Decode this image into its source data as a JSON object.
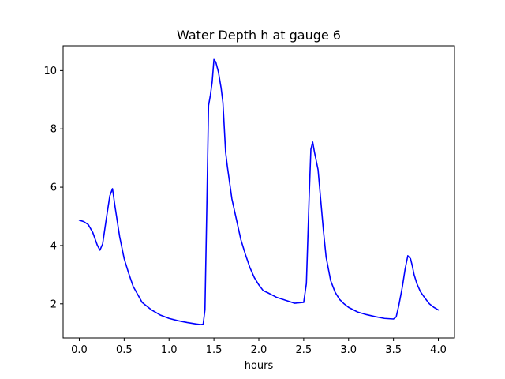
{
  "chart_data": {
    "type": "line",
    "title": "Water Depth h at gauge 6",
    "xlabel": "hours",
    "ylabel": "",
    "xlim": [
      -0.18,
      4.18
    ],
    "ylim": [
      0.83,
      10.85
    ],
    "xticks": [
      0.0,
      0.5,
      1.0,
      1.5,
      2.0,
      2.5,
      3.0,
      3.5,
      4.0
    ],
    "xtick_labels": [
      "0.0",
      "0.5",
      "1.0",
      "1.5",
      "2.0",
      "2.5",
      "3.0",
      "3.5",
      "4.0"
    ],
    "yticks": [
      2,
      4,
      6,
      8,
      10
    ],
    "ytick_labels": [
      "2",
      "4",
      "6",
      "8",
      "10"
    ],
    "grid": false,
    "series": [
      {
        "color": "#0000ff",
        "x": [
          0.0,
          0.05,
          0.1,
          0.15,
          0.2,
          0.23,
          0.26,
          0.3,
          0.34,
          0.37,
          0.4,
          0.45,
          0.5,
          0.55,
          0.6,
          0.7,
          0.8,
          0.9,
          1.0,
          1.1,
          1.2,
          1.3,
          1.35,
          1.38,
          1.4,
          1.42,
          1.44,
          1.46,
          1.48,
          1.5,
          1.52,
          1.55,
          1.58,
          1.6,
          1.63,
          1.65,
          1.7,
          1.75,
          1.8,
          1.85,
          1.9,
          1.95,
          2.0,
          2.05,
          2.1,
          2.15,
          2.2,
          2.3,
          2.4,
          2.5,
          2.53,
          2.56,
          2.58,
          2.6,
          2.62,
          2.64,
          2.66,
          2.68,
          2.7,
          2.72,
          2.75,
          2.8,
          2.85,
          2.9,
          2.95,
          3.0,
          3.1,
          3.2,
          3.3,
          3.4,
          3.5,
          3.53,
          3.56,
          3.6,
          3.63,
          3.66,
          3.69,
          3.71,
          3.73,
          3.76,
          3.8,
          3.85,
          3.9,
          3.95,
          4.0
        ],
        "y": [
          4.87,
          4.82,
          4.72,
          4.45,
          4.02,
          3.84,
          4.05,
          4.9,
          5.7,
          5.95,
          5.3,
          4.3,
          3.55,
          3.05,
          2.6,
          2.05,
          1.8,
          1.62,
          1.5,
          1.42,
          1.36,
          1.31,
          1.29,
          1.3,
          1.8,
          5.2,
          8.8,
          9.15,
          9.6,
          10.38,
          10.3,
          9.95,
          9.4,
          8.9,
          7.2,
          6.7,
          5.6,
          4.9,
          4.2,
          3.7,
          3.25,
          2.9,
          2.65,
          2.45,
          2.38,
          2.3,
          2.22,
          2.12,
          2.02,
          2.05,
          2.7,
          5.6,
          7.3,
          7.55,
          7.2,
          6.9,
          6.6,
          5.9,
          5.2,
          4.5,
          3.6,
          2.8,
          2.4,
          2.15,
          2.0,
          1.88,
          1.72,
          1.63,
          1.56,
          1.5,
          1.48,
          1.55,
          1.95,
          2.6,
          3.2,
          3.65,
          3.55,
          3.3,
          3.0,
          2.7,
          2.42,
          2.2,
          2.0,
          1.88,
          1.79
        ]
      }
    ]
  }
}
